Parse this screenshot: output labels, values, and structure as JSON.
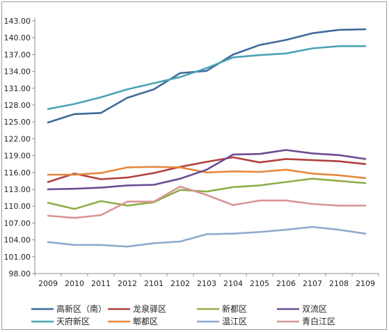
{
  "chart_data": {
    "type": "line",
    "title": "",
    "xlabel": "",
    "ylabel": "",
    "categories": [
      "2009",
      "2010",
      "2011",
      "2012",
      "2101",
      "2102",
      "2103",
      "2104",
      "2105",
      "2106",
      "2107",
      "2108",
      "2109"
    ],
    "ylim": [
      98.0,
      143.0
    ],
    "yticks": [
      "98.00",
      "101.00",
      "104.00",
      "107.00",
      "110.00",
      "113.00",
      "116.00",
      "119.00",
      "122.00",
      "125.00",
      "128.00",
      "131.00",
      "134.00",
      "137.00",
      "140.00",
      "143.00"
    ],
    "grid": false,
    "legend_position": "bottom",
    "series": [
      {
        "name": "高新区（南）",
        "color": "#3f6a9b",
        "values": [
          124.9,
          126.4,
          126.6,
          129.3,
          130.8,
          133.7,
          134.1,
          137.0,
          138.7,
          139.6,
          140.8,
          141.4,
          141.5
        ]
      },
      {
        "name": "天府新区",
        "color": "#4aa3b5",
        "values": [
          127.3,
          128.2,
          129.4,
          130.8,
          131.9,
          133.0,
          134.6,
          136.5,
          136.9,
          137.2,
          138.1,
          138.5,
          138.5
        ]
      },
      {
        "name": "龙泉驿区",
        "color": "#b0413e",
        "values": [
          114.3,
          115.8,
          114.8,
          115.1,
          115.9,
          117.0,
          117.9,
          118.7,
          117.8,
          118.4,
          118.2,
          118.0,
          117.5
        ]
      },
      {
        "name": "郫都区",
        "color": "#e6873c",
        "values": [
          115.6,
          115.6,
          115.9,
          116.9,
          117.0,
          116.9,
          116.0,
          116.2,
          116.1,
          116.5,
          115.8,
          115.5,
          115.0
        ]
      },
      {
        "name": "新都区",
        "color": "#8fad4a",
        "values": [
          110.6,
          109.5,
          110.9,
          110.1,
          110.7,
          112.9,
          112.6,
          113.4,
          113.7,
          114.3,
          114.9,
          114.5,
          114.1
        ]
      },
      {
        "name": "温江区",
        "color": "#8ea9cf",
        "values": [
          103.6,
          103.1,
          103.1,
          102.8,
          103.4,
          103.7,
          105.0,
          105.1,
          105.4,
          105.8,
          106.3,
          105.8,
          105.1
        ]
      },
      {
        "name": "双流区",
        "color": "#6a4c93",
        "values": [
          113.0,
          113.1,
          113.3,
          113.7,
          113.8,
          114.9,
          116.5,
          119.2,
          119.3,
          120.0,
          119.4,
          119.1,
          118.4
        ]
      },
      {
        "name": "青白江区",
        "color": "#d99594",
        "values": [
          108.3,
          107.9,
          108.4,
          110.8,
          110.8,
          113.5,
          112.0,
          110.2,
          111.0,
          111.0,
          110.4,
          110.1,
          110.1
        ]
      }
    ]
  }
}
